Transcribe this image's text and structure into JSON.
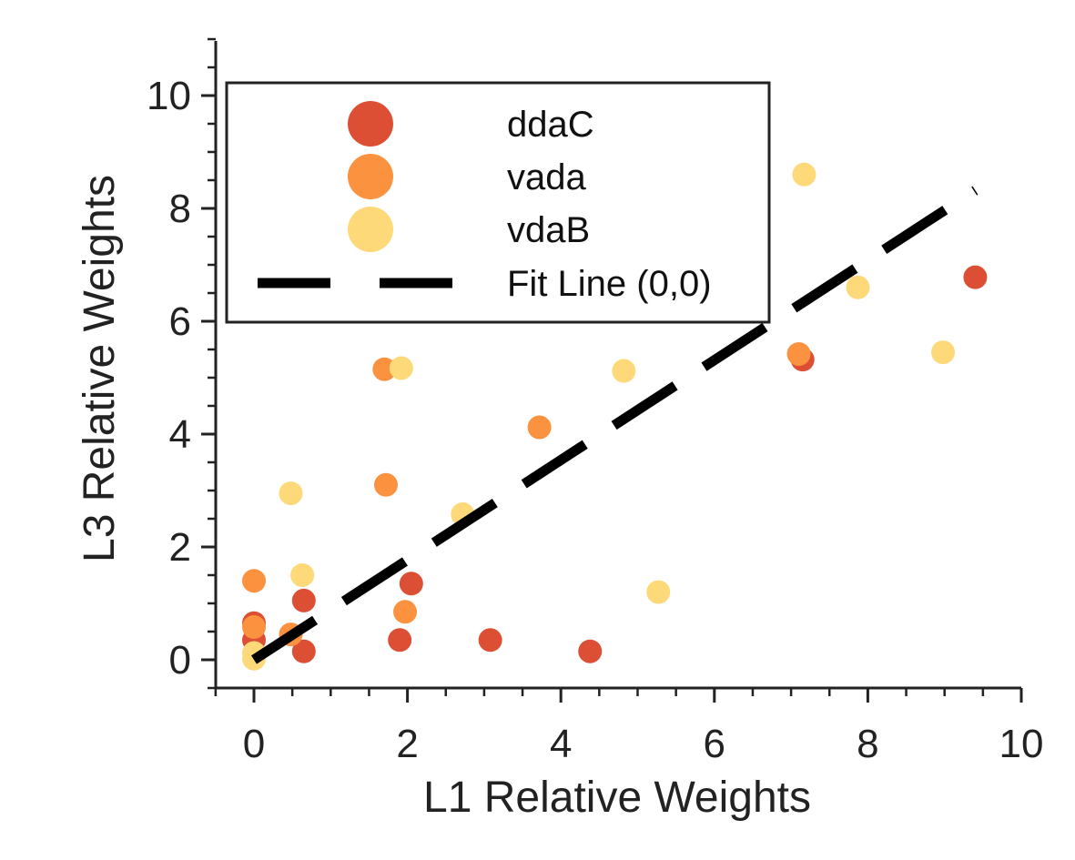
{
  "chart_data": {
    "type": "scatter",
    "xlabel": "L1 Relative Weights",
    "ylabel": "L3 Relative Weights",
    "xlim": [
      -0.5,
      10
    ],
    "ylim": [
      -0.5,
      11
    ],
    "xticks": [
      0,
      2,
      4,
      6,
      8,
      10
    ],
    "xtick_labels": [
      "0",
      "2",
      "4",
      "6",
      "8",
      "10"
    ],
    "yticks": [
      0,
      2,
      4,
      6,
      8,
      10
    ],
    "ytick_labels": [
      "0",
      "2",
      "4",
      "6",
      "8",
      "10"
    ],
    "grid": false,
    "legend_position": "top-left",
    "series": [
      {
        "name": "ddaC",
        "color": "#dd4f35",
        "points": [
          [
            0,
            0.65
          ],
          [
            0,
            0.35
          ],
          [
            0.65,
            1.05
          ],
          [
            0.65,
            0.15
          ],
          [
            2.05,
            1.35
          ],
          [
            1.9,
            0.35
          ],
          [
            3.08,
            0.35
          ],
          [
            4.38,
            0.15
          ],
          [
            7.15,
            5.32
          ],
          [
            9.4,
            6.78
          ]
        ]
      },
      {
        "name": "vada",
        "color": "#fb9240",
        "points": [
          [
            0,
            1.4
          ],
          [
            0,
            0.58
          ],
          [
            0.48,
            0.45
          ],
          [
            1.7,
            5.15
          ],
          [
            1.72,
            3.1
          ],
          [
            1.97,
            0.85
          ],
          [
            3.72,
            4.12
          ],
          [
            7.1,
            5.42
          ]
        ]
      },
      {
        "name": "vdaB",
        "color": "#fed97a",
        "points": [
          [
            0,
            0.02
          ],
          [
            0,
            0.12
          ],
          [
            0.48,
            2.95
          ],
          [
            0.63,
            1.5
          ],
          [
            1.92,
            5.17
          ],
          [
            2.72,
            2.58
          ],
          [
            4.82,
            5.12
          ],
          [
            5.27,
            1.2
          ],
          [
            7.17,
            8.6
          ],
          [
            7.87,
            6.6
          ],
          [
            8.98,
            5.45
          ]
        ]
      }
    ],
    "fit_line": {
      "name": "Fit Line (0,0)",
      "color": "#000000",
      "style": "dashed",
      "x": [
        0,
        9.4
      ],
      "y": [
        0,
        8.32
      ]
    }
  }
}
